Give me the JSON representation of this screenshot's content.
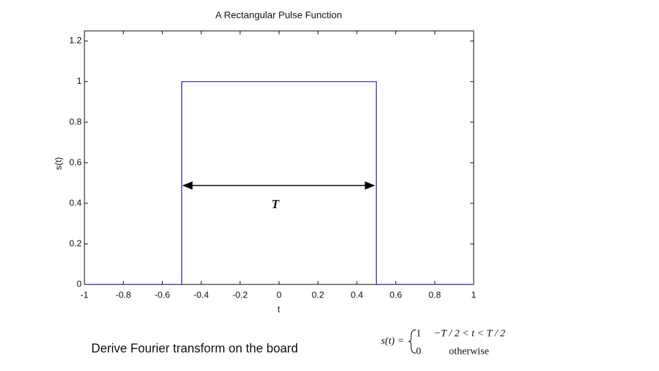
{
  "chart_data": {
    "type": "line",
    "title": "A Rectangular Pulse Function",
    "x_label": "t",
    "y_label": "s(t)",
    "x": [
      -1,
      -0.5,
      -0.5,
      0.5,
      0.5,
      1
    ],
    "values": [
      0,
      0,
      1,
      1,
      0,
      0
    ],
    "color": "#1a1aa6",
    "xlim": [
      -1,
      1
    ],
    "ylim": [
      0,
      1.25
    ],
    "xticks": [
      -1,
      -0.8,
      -0.6,
      -0.4,
      -0.2,
      0,
      0.2,
      0.4,
      0.6,
      0.8,
      1
    ],
    "yticks": [
      0,
      0.2,
      0.4,
      0.6,
      0.8,
      1,
      1.2
    ],
    "grid": false,
    "annotation": "T"
  },
  "footer": {
    "note": "Derive Fourier transform on the board",
    "formula": {
      "lhs": "s(t) =",
      "case1_value": "1",
      "case1_condition": "−T / 2 < t < T / 2",
      "case2_value": "0",
      "case2_condition": "otherwise"
    }
  }
}
